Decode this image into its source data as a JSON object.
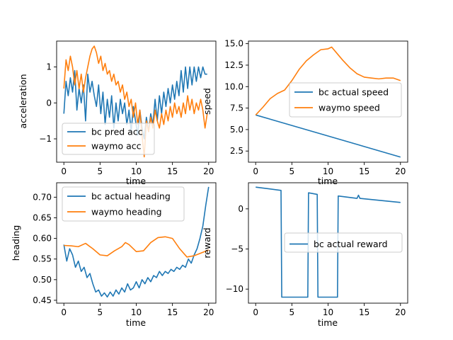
{
  "colors": {
    "blue": "#1f77b4",
    "orange": "#ff7f0e",
    "axes": "#000000",
    "legend_border": "#cccccc"
  },
  "chart_data": [
    {
      "type": "line",
      "title": "",
      "xlabel": "time",
      "ylabel": "acceleration",
      "xlim": [
        -1,
        21
      ],
      "ylim": [
        -1.65,
        1.72
      ],
      "xticks": [
        0,
        5,
        10,
        15,
        20
      ],
      "yticks": [
        -1,
        0,
        1
      ],
      "grid": false,
      "legend": "lower-left",
      "series": [
        {
          "name": "bc pred acc",
          "color": "#1f77b4",
          "x": [
            0,
            0.3,
            0.6,
            0.9,
            1.2,
            1.5,
            1.8,
            2.1,
            2.4,
            2.7,
            3.0,
            3.3,
            3.6,
            3.9,
            4.2,
            4.5,
            4.8,
            5.1,
            5.4,
            5.7,
            6.0,
            6.3,
            6.6,
            6.9,
            7.2,
            7.5,
            7.8,
            8.1,
            8.4,
            8.7,
            9.0,
            9.3,
            9.6,
            9.9,
            10.2,
            10.5,
            10.8,
            11.1,
            11.4,
            11.7,
            12.0,
            12.3,
            12.6,
            12.9,
            13.2,
            13.5,
            13.8,
            14.1,
            14.4,
            14.7,
            15.0,
            15.3,
            15.6,
            15.9,
            16.2,
            16.5,
            16.8,
            17.1,
            17.4,
            17.7,
            18.0,
            18.3,
            18.6,
            18.9,
            19.2,
            19.5,
            19.8
          ],
          "y": [
            -0.3,
            0.6,
            0.2,
            0.7,
            0.3,
            0.9,
            -0.2,
            0.4,
            0.0,
            0.5,
            -0.5,
            0.8,
            0.3,
            0.6,
            0.2,
            -0.1,
            0.5,
            -0.3,
            0.3,
            -0.6,
            0.1,
            -0.4,
            0.2,
            -0.7,
            0.0,
            -0.5,
            0.1,
            -0.3,
            0.0,
            -0.6,
            -0.2,
            -0.8,
            -0.1,
            -0.5,
            -0.9,
            -0.2,
            -0.7,
            -1.0,
            -0.4,
            -0.8,
            -0.3,
            -0.6,
            0.1,
            -0.5,
            0.2,
            -0.3,
            0.3,
            -0.1,
            0.4,
            0.0,
            0.5,
            0.1,
            0.6,
            0.2,
            0.9,
            0.3,
            1.0,
            0.4,
            1.0,
            0.5,
            1.0,
            0.6,
            1.0,
            0.7,
            1.0,
            0.8,
            0.8
          ]
        },
        {
          "name": "waymo acc",
          "color": "#ff7f0e",
          "x": [
            0,
            0.3,
            0.6,
            0.9,
            1.2,
            1.5,
            1.8,
            2.1,
            2.4,
            2.7,
            3.0,
            3.3,
            3.6,
            3.9,
            4.2,
            4.5,
            4.8,
            5.1,
            5.4,
            5.7,
            6.0,
            6.3,
            6.6,
            6.9,
            7.2,
            7.5,
            7.8,
            8.1,
            8.4,
            8.7,
            9.0,
            9.3,
            9.6,
            9.9,
            10.2,
            10.5,
            10.8,
            11.1,
            11.4,
            11.7,
            12.0,
            12.3,
            12.6,
            12.9,
            13.2,
            13.5,
            13.8,
            14.1,
            14.4,
            14.7,
            15.0,
            15.3,
            15.6,
            15.9,
            16.2,
            16.5,
            16.8,
            17.1,
            17.4,
            17.7,
            18.0,
            18.3,
            18.6,
            18.9,
            19.2,
            19.5,
            19.8
          ],
          "y": [
            0.4,
            1.2,
            0.9,
            1.3,
            1.0,
            0.5,
            0.9,
            0.4,
            0.8,
            0.3,
            0.7,
            1.0,
            1.3,
            1.5,
            1.58,
            1.4,
            1.1,
            1.3,
            0.9,
            1.1,
            0.8,
            0.9,
            0.6,
            0.8,
            0.5,
            0.6,
            0.3,
            0.5,
            0.1,
            0.3,
            -0.1,
            0.1,
            -0.4,
            0.0,
            -0.6,
            -0.2,
            -0.9,
            -1.5,
            -0.5,
            -0.8,
            -0.4,
            -0.7,
            -0.2,
            -0.5,
            -0.7,
            -0.3,
            -0.6,
            -0.2,
            -0.5,
            -0.1,
            -0.4,
            0.0,
            -0.3,
            -0.1,
            -0.4,
            0.0,
            -0.3,
            0.2,
            -0.2,
            0.1,
            -0.3,
            0.0,
            -0.2,
            0.1,
            -0.2,
            -0.7,
            -0.3
          ]
        }
      ]
    },
    {
      "type": "line",
      "title": "",
      "xlabel": "time",
      "ylabel": "speed",
      "xlim": [
        -1,
        21
      ],
      "ylim": [
        1.2,
        15.3
      ],
      "xticks": [
        0,
        5,
        10,
        15,
        20
      ],
      "yticks": [
        2.5,
        5.0,
        7.5,
        10.0,
        12.5,
        15.0
      ],
      "grid": false,
      "legend": "center-right",
      "series": [
        {
          "name": "bc actual speed",
          "color": "#1f77b4",
          "x": [
            0,
            20
          ],
          "y": [
            6.7,
            1.8
          ]
        },
        {
          "name": "waymo speed",
          "color": "#ff7f0e",
          "x": [
            0,
            1,
            2,
            3,
            4,
            5,
            6,
            7,
            8,
            9,
            10,
            10.5,
            11,
            12,
            13,
            14,
            15,
            16,
            17,
            18,
            19,
            20
          ],
          "y": [
            6.7,
            7.6,
            8.6,
            9.2,
            9.6,
            10.7,
            12.0,
            13.0,
            13.7,
            14.3,
            14.4,
            14.6,
            14.1,
            13.1,
            12.2,
            11.5,
            11.1,
            11.0,
            10.9,
            11.0,
            11.0,
            10.7
          ]
        }
      ]
    },
    {
      "type": "line",
      "title": "",
      "xlabel": "time",
      "ylabel": "heading",
      "xlim": [
        -1,
        21
      ],
      "ylim": [
        0.443,
        0.735
      ],
      "xticks": [
        0,
        5,
        10,
        15,
        20
      ],
      "yticks": [
        0.45,
        0.5,
        0.55,
        0.6,
        0.65,
        0.7
      ],
      "grid": false,
      "legend": "upper-left",
      "series": [
        {
          "name": "bc actual heading",
          "color": "#1f77b4",
          "x": [
            0,
            0.4,
            0.8,
            1.2,
            1.6,
            2.0,
            2.4,
            2.8,
            3.2,
            3.6,
            4.0,
            4.4,
            4.8,
            5.2,
            5.6,
            6.0,
            6.4,
            6.8,
            7.2,
            7.6,
            8.0,
            8.4,
            8.8,
            9.2,
            9.6,
            10.0,
            10.4,
            10.8,
            11.2,
            11.6,
            12.0,
            12.4,
            12.8,
            13.2,
            13.6,
            14.0,
            14.4,
            14.8,
            15.2,
            15.6,
            16.0,
            16.4,
            16.8,
            17.2,
            17.6,
            18.0,
            18.4,
            18.8,
            19.2,
            19.6,
            20.0
          ],
          "y": [
            0.585,
            0.545,
            0.575,
            0.56,
            0.53,
            0.545,
            0.52,
            0.53,
            0.505,
            0.515,
            0.49,
            0.47,
            0.475,
            0.46,
            0.468,
            0.458,
            0.47,
            0.46,
            0.475,
            0.465,
            0.48,
            0.47,
            0.49,
            0.475,
            0.48,
            0.495,
            0.48,
            0.5,
            0.49,
            0.505,
            0.495,
            0.51,
            0.505,
            0.52,
            0.51,
            0.52,
            0.515,
            0.525,
            0.52,
            0.53,
            0.525,
            0.535,
            0.53,
            0.55,
            0.54,
            0.56,
            0.575,
            0.6,
            0.63,
            0.68,
            0.725
          ]
        },
        {
          "name": "waymo heading",
          "color": "#ff7f0e",
          "x": [
            0,
            1,
            2,
            3,
            4,
            5,
            6,
            7,
            8,
            8.5,
            9,
            10,
            11,
            12,
            13,
            14,
            15,
            16,
            17,
            18,
            19,
            20
          ],
          "y": [
            0.583,
            0.582,
            0.58,
            0.588,
            0.575,
            0.56,
            0.558,
            0.57,
            0.58,
            0.59,
            0.585,
            0.568,
            0.57,
            0.59,
            0.602,
            0.604,
            0.6,
            0.575,
            0.555,
            0.558,
            0.565,
            0.572
          ]
        }
      ]
    },
    {
      "type": "line",
      "title": "",
      "xlabel": "time",
      "ylabel": "reward",
      "xlim": [
        -1,
        21
      ],
      "ylim": [
        -11.75,
        3.25
      ],
      "xticks": [
        0,
        5,
        10,
        15,
        20
      ],
      "yticks": [
        -10,
        -5,
        0
      ],
      "grid": false,
      "legend": "center-right",
      "series": [
        {
          "name": "bc actual reward",
          "color": "#1f77b4",
          "x": [
            0,
            3.5,
            3.6,
            7.2,
            7.3,
            8.5,
            8.6,
            11.3,
            11.4,
            14.0,
            14.2,
            14.4,
            20
          ],
          "y": [
            2.7,
            2.3,
            -11.0,
            -11.0,
            2.0,
            1.8,
            -11.0,
            -11.0,
            1.6,
            1.3,
            1.7,
            1.3,
            0.8
          ]
        }
      ]
    }
  ]
}
